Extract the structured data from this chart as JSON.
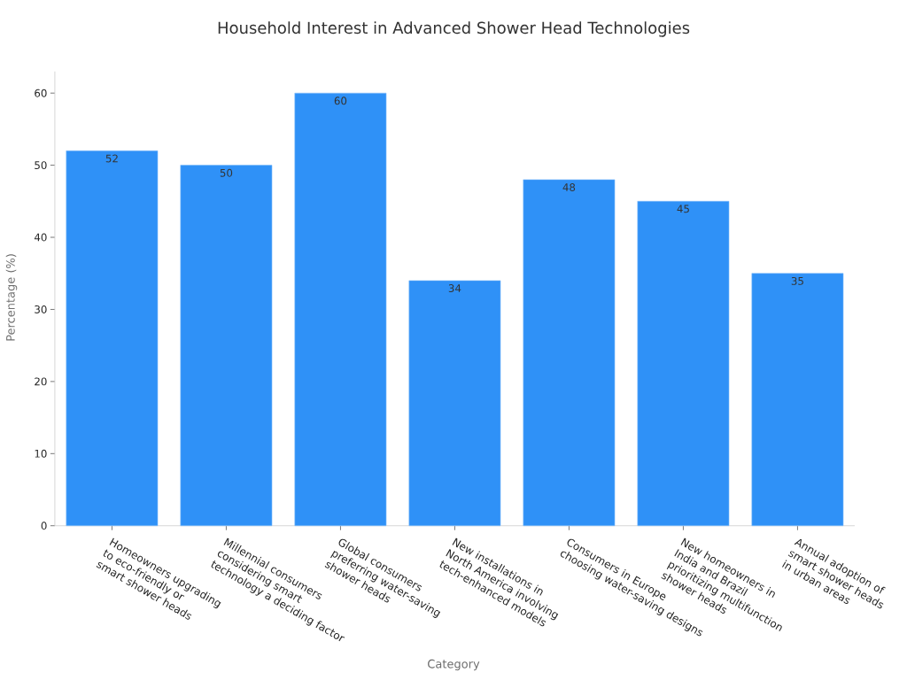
{
  "chart_data": {
    "type": "bar",
    "title": "Household Interest in Advanced Shower Head Technologies",
    "xlabel": "Category",
    "ylabel": "Percentage (%)",
    "categories": [
      "Homeowners upgrading\nto eco-friendly or\nsmart shower heads",
      "Millennial consumers\nconsidering smart\ntechnology a deciding factor",
      "Global consumers\npreferring water-saving\nshower heads",
      "New installations in\nNorth America involving\ntech-enhanced models",
      "Consumers in Europe\nchoosing water-saving designs",
      "New homeowners in\nIndia and Brazil\nprioritizing multifunction\nshower heads",
      "Annual adoption of\nsmart shower heads\nin urban areas"
    ],
    "values": [
      52,
      50,
      60,
      34,
      48,
      45,
      35
    ],
    "color": "#2f91f7",
    "ylim": [
      0,
      63
    ],
    "yticks": [
      0,
      10,
      20,
      30,
      40,
      50,
      60
    ],
    "data_labels": true
  }
}
